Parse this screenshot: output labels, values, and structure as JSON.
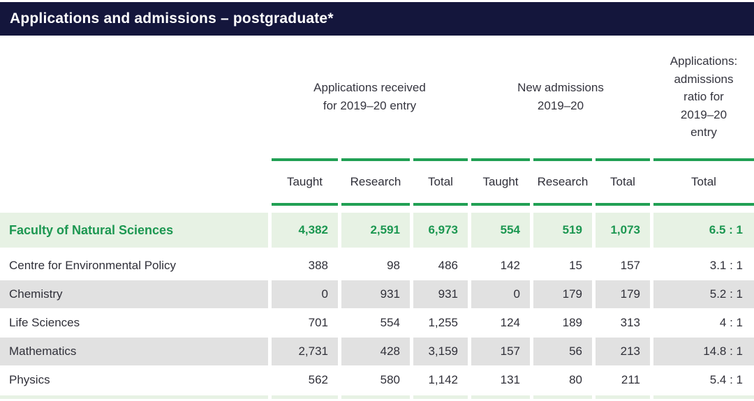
{
  "title": "Applications and admissions – postgraduate*",
  "colors": {
    "header_bar": "#14163c",
    "accent_green": "#21a054",
    "highlight_row_bg": "#e7f2e4",
    "highlight_text": "#1c9751",
    "stripe_gray": "#e1e1e1",
    "body_text": "#303039"
  },
  "table": {
    "groups": [
      {
        "line1": "Applications received",
        "line2": "for 2019–20 entry"
      },
      {
        "line1": "New admissions",
        "line2": "2019–20"
      },
      {
        "full": "Applications: admissions ratio for 2019–20 entry"
      }
    ],
    "subheaders": [
      "Taught",
      "Research",
      "Total",
      "Taught",
      "Research",
      "Total",
      "Total"
    ],
    "summary_row": {
      "label": "Faculty of Natural Sciences",
      "values": [
        "4,382",
        "2,591",
        "6,973",
        "554",
        "519",
        "1,073",
        "6.5 : 1"
      ]
    },
    "rows": [
      {
        "label": "Centre for Environmental Policy",
        "values": [
          "388",
          "98",
          "486",
          "142",
          "15",
          "157",
          "3.1 : 1"
        ]
      },
      {
        "label": "Chemistry",
        "values": [
          "0",
          "931",
          "931",
          "0",
          "179",
          "179",
          "5.2 : 1"
        ]
      },
      {
        "label": "Life Sciences",
        "values": [
          "701",
          "554",
          "1,255",
          "124",
          "189",
          "313",
          "4 : 1"
        ]
      },
      {
        "label": "Mathematics",
        "values": [
          "2,731",
          "428",
          "3,159",
          "157",
          "56",
          "213",
          "14.8 : 1"
        ]
      },
      {
        "label": "Physics",
        "values": [
          "562",
          "580",
          "1,142",
          "131",
          "80",
          "211",
          "5.4 : 1"
        ]
      }
    ]
  }
}
